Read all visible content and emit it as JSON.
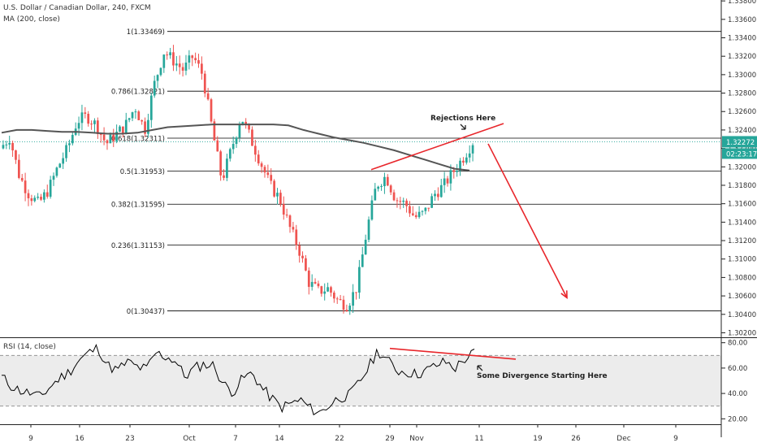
{
  "header": {
    "title": "U.S. Dollar / Canadian Dollar, 240, FXCM",
    "indicator": "MA (200, close)"
  },
  "rsi_panel": {
    "label": "RSI (14, close)"
  },
  "price_badge": {
    "value": "1.32272",
    "timer": "02:23:17"
  },
  "annotations": {
    "rejection": "Rejections Here",
    "divergence": "Some Divergence Starting Here"
  },
  "colors": {
    "up": "#26a69a",
    "down": "#ef5350",
    "ma": "#555555",
    "trend": "#e8262b",
    "grid": "#000000",
    "rsi_line": "#000000",
    "rsi_band": "#ececec",
    "price_badge": "#26a69a",
    "timer_badge": "#26a69a"
  },
  "chart_data": [
    {
      "type": "candlestick",
      "price_axis": {
        "ticks": [
          "1.33800",
          "1.33600",
          "1.33400",
          "1.33200",
          "1.33000",
          "1.32800",
          "1.32600",
          "1.32400",
          "1.32200",
          "1.32000",
          "1.31800",
          "1.31600",
          "1.31400",
          "1.31200",
          "1.31000",
          "1.30800",
          "1.30600",
          "1.30400",
          "1.30200"
        ],
        "range": [
          1.3016,
          1.3381
        ]
      },
      "time_axis": {
        "labels": [
          "9",
          "16",
          "23",
          "Oct",
          "7",
          "14",
          "22",
          "29",
          "Nov",
          "11",
          "19",
          "26",
          "Dec",
          "9"
        ]
      },
      "fibonacci_levels": [
        {
          "label": "1(1.33469)",
          "price": 1.33469
        },
        {
          "label": "0.786(1.32821)",
          "price": 1.32821
        },
        {
          "label": "0.618(1.32311)",
          "price": 1.32311
        },
        {
          "label": "0.5(1.31953)",
          "price": 1.31953
        },
        {
          "label": "0.382(1.31595)",
          "price": 1.31595
        },
        {
          "label": "0.236(1.31153)",
          "price": 1.31153
        },
        {
          "label": "0(1.30437)",
          "price": 1.30437
        }
      ],
      "current_price": 1.32272,
      "price_path": [
        1.322,
        1.3232,
        1.319,
        1.317,
        1.316,
        1.3175,
        1.32,
        1.322,
        1.325,
        1.3255,
        1.3245,
        1.3225,
        1.3235,
        1.3245,
        1.3265,
        1.324,
        1.329,
        1.3325,
        1.3315,
        1.3305,
        1.332,
        1.33,
        1.324,
        1.3185,
        1.322,
        1.3255,
        1.323,
        1.3205,
        1.318,
        1.3165,
        1.3135,
        1.311,
        1.3075,
        1.3065,
        1.3068,
        1.3055,
        1.305,
        1.307,
        1.313,
        1.318,
        1.319,
        1.3165,
        1.316,
        1.3145,
        1.315,
        1.317,
        1.318,
        1.3195,
        1.321,
        1.3227
      ],
      "ma_path": [
        1.3237,
        1.324,
        1.324,
        1.3239,
        1.3238,
        1.3238,
        1.3237,
        1.3236,
        1.3236,
        1.3237,
        1.324,
        1.3243,
        1.3244,
        1.3245,
        1.3246,
        1.3246,
        1.3246,
        1.3246,
        1.3246,
        1.3245,
        1.324,
        1.3236,
        1.3232,
        1.3229,
        1.3226,
        1.3222,
        1.3218,
        1.3213,
        1.3208,
        1.3203,
        1.3198,
        1.3196
      ],
      "trend_lines": [
        {
          "name": "resistance",
          "from": [
            1.3197,
            "Oct 25"
          ],
          "to": [
            1.3247,
            "Nov 15"
          ]
        },
        {
          "name": "projection",
          "from": [
            1.3225,
            "Nov 12"
          ],
          "to": [
            1.3058,
            "Nov 25"
          ]
        }
      ]
    },
    {
      "type": "line",
      "name": "RSI (14, close)",
      "y_ticks": [
        "80.00",
        "60.00",
        "40.00",
        "20.00"
      ],
      "band": [
        30,
        70
      ],
      "ylim": [
        17,
        83
      ],
      "values": [
        53,
        46,
        42,
        40,
        37,
        45,
        52,
        57,
        66,
        72,
        76,
        62,
        58,
        65,
        61,
        59,
        72,
        69,
        66,
        53,
        60,
        63,
        62,
        47,
        41,
        52,
        56,
        44,
        36,
        29,
        32,
        35,
        28,
        25,
        31,
        37,
        38,
        48,
        60,
        74,
        66,
        58,
        57,
        55,
        58,
        62,
        65,
        60,
        67,
        72
      ],
      "divergence_line": {
        "from": [
          75.5,
          "Oct 29"
        ],
        "to": [
          67,
          "Nov 15"
        ]
      }
    }
  ]
}
